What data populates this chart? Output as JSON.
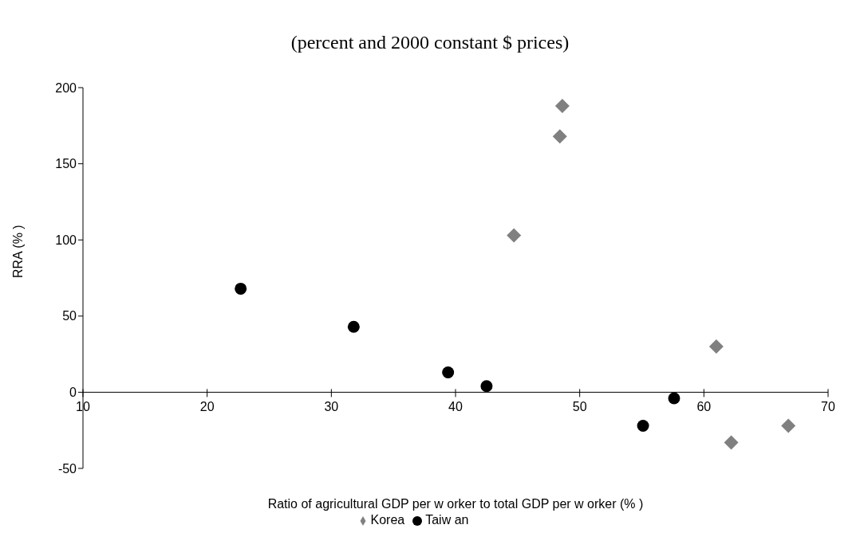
{
  "chart_data": {
    "type": "scatter",
    "title": "(percent and 2000 constant $ prices)",
    "xlabel": "Ratio of agricultural GDP per w orker to total GDP per w orker (% )",
    "ylabel": "RRA (% )",
    "xlim": [
      10,
      70
    ],
    "xticks": [
      10,
      20,
      30,
      40,
      50,
      60,
      70
    ],
    "ylim": [
      -50,
      200
    ],
    "yticks": [
      -50,
      0,
      50,
      100,
      150,
      200
    ],
    "legend": "bottom",
    "series": [
      {
        "name": "Korea",
        "color": "#808080",
        "marker": "diamond",
        "x": [
          48.6,
          48.4,
          44.7,
          61.0,
          62.2,
          66.8
        ],
        "values": [
          188,
          168,
          103,
          30,
          -33,
          -22
        ]
      },
      {
        "name": "Taiw an",
        "color": "#000000",
        "marker": "circle",
        "x": [
          22.7,
          31.8,
          39.4,
          42.5,
          55.1,
          57.6
        ],
        "values": [
          68,
          43,
          13,
          4,
          -22,
          -4
        ]
      }
    ]
  }
}
